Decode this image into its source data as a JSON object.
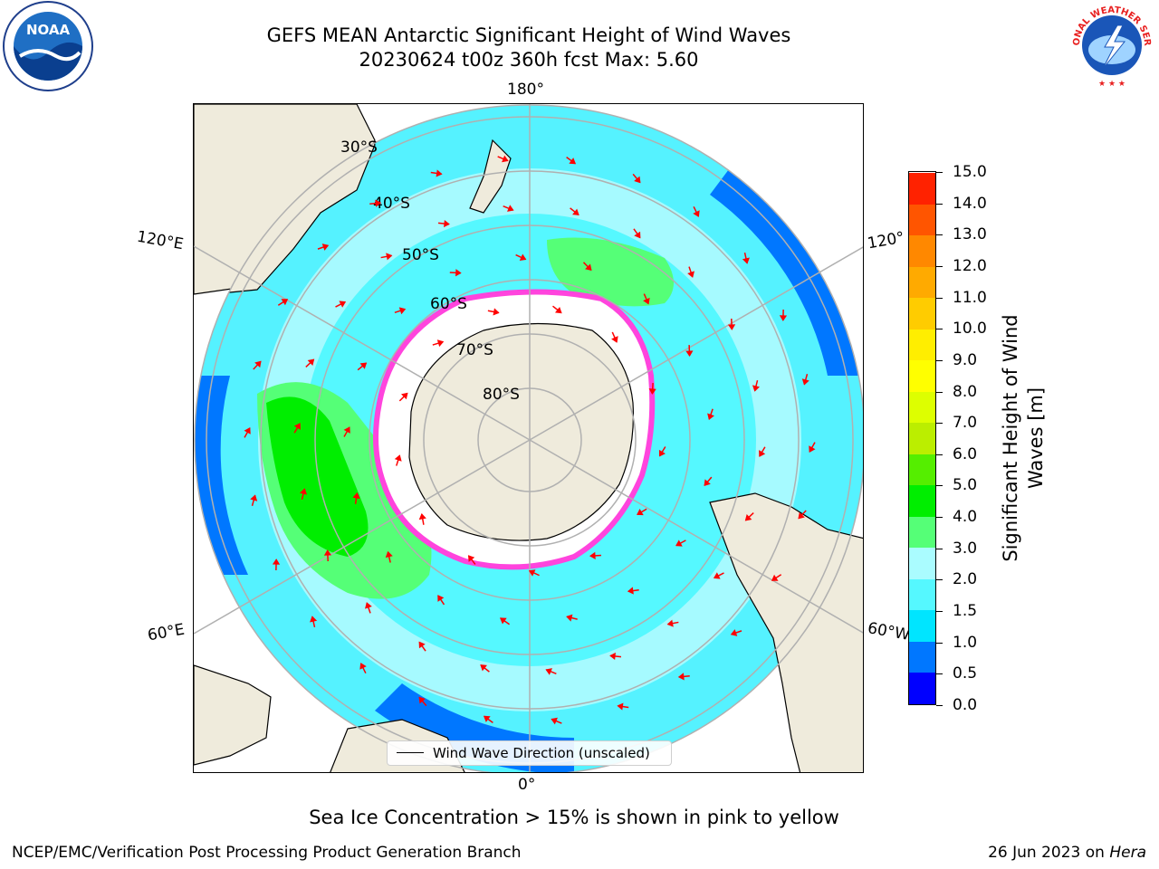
{
  "title": {
    "line1": "GEFS MEAN Antarctic Significant Height of Wind Waves",
    "line2": "20230624 t00z 360h fcst   Max: 5.60"
  },
  "logos": {
    "left": "noaa-logo",
    "left_text": "NOAA",
    "right": "nws-logo",
    "right_text": "NATIONAL WEATHER SERVICE"
  },
  "map": {
    "projection": "south-polar-stereographic",
    "longitude_labels": {
      "top": "180°",
      "bottom": "0°",
      "upper_left": "120°E",
      "lower_left": "60°E",
      "upper_right": "120°",
      "lower_right": "60°W"
    },
    "latitude_labels": [
      "30°S",
      "40°S",
      "50°S",
      "60°S",
      "70°S",
      "80°S"
    ],
    "colors": {
      "land": "#efebdc",
      "ice_edge": "#ff44dd",
      "arrows": "#ff0000",
      "grid": "#b0b0b0"
    },
    "legend": "Wind Wave Direction (unscaled)"
  },
  "colorbar": {
    "label": "Significant Height of Wind Waves [m]",
    "label_line1": "Significant Height of Wind",
    "label_line2": "Waves [m]",
    "ticks": [
      "0.0",
      "0.5",
      "1.0",
      "1.5",
      "2.0",
      "3.0",
      "4.0",
      "5.0",
      "6.0",
      "7.0",
      "8.0",
      "9.0",
      "10.0",
      "11.0",
      "12.0",
      "13.0",
      "14.0",
      "15.0"
    ],
    "colors": [
      "#0000ff",
      "#0077ff",
      "#00e5ff",
      "#55f8ff",
      "#aafcff",
      "#55ff77",
      "#00ee00",
      "#55ee00",
      "#bbee00",
      "#ddff00",
      "#ffff00",
      "#ffee00",
      "#ffcc00",
      "#ffaa00",
      "#ff8800",
      "#ff5500",
      "#ff2200"
    ]
  },
  "footnote": "Sea Ice Concentration > 15% is shown in pink to yellow",
  "credit": "NCEP/EMC/Verification Post Processing Product Generation Branch",
  "date_stamp": {
    "date": "26 Jun 2023 on ",
    "machine": "Hera"
  }
}
